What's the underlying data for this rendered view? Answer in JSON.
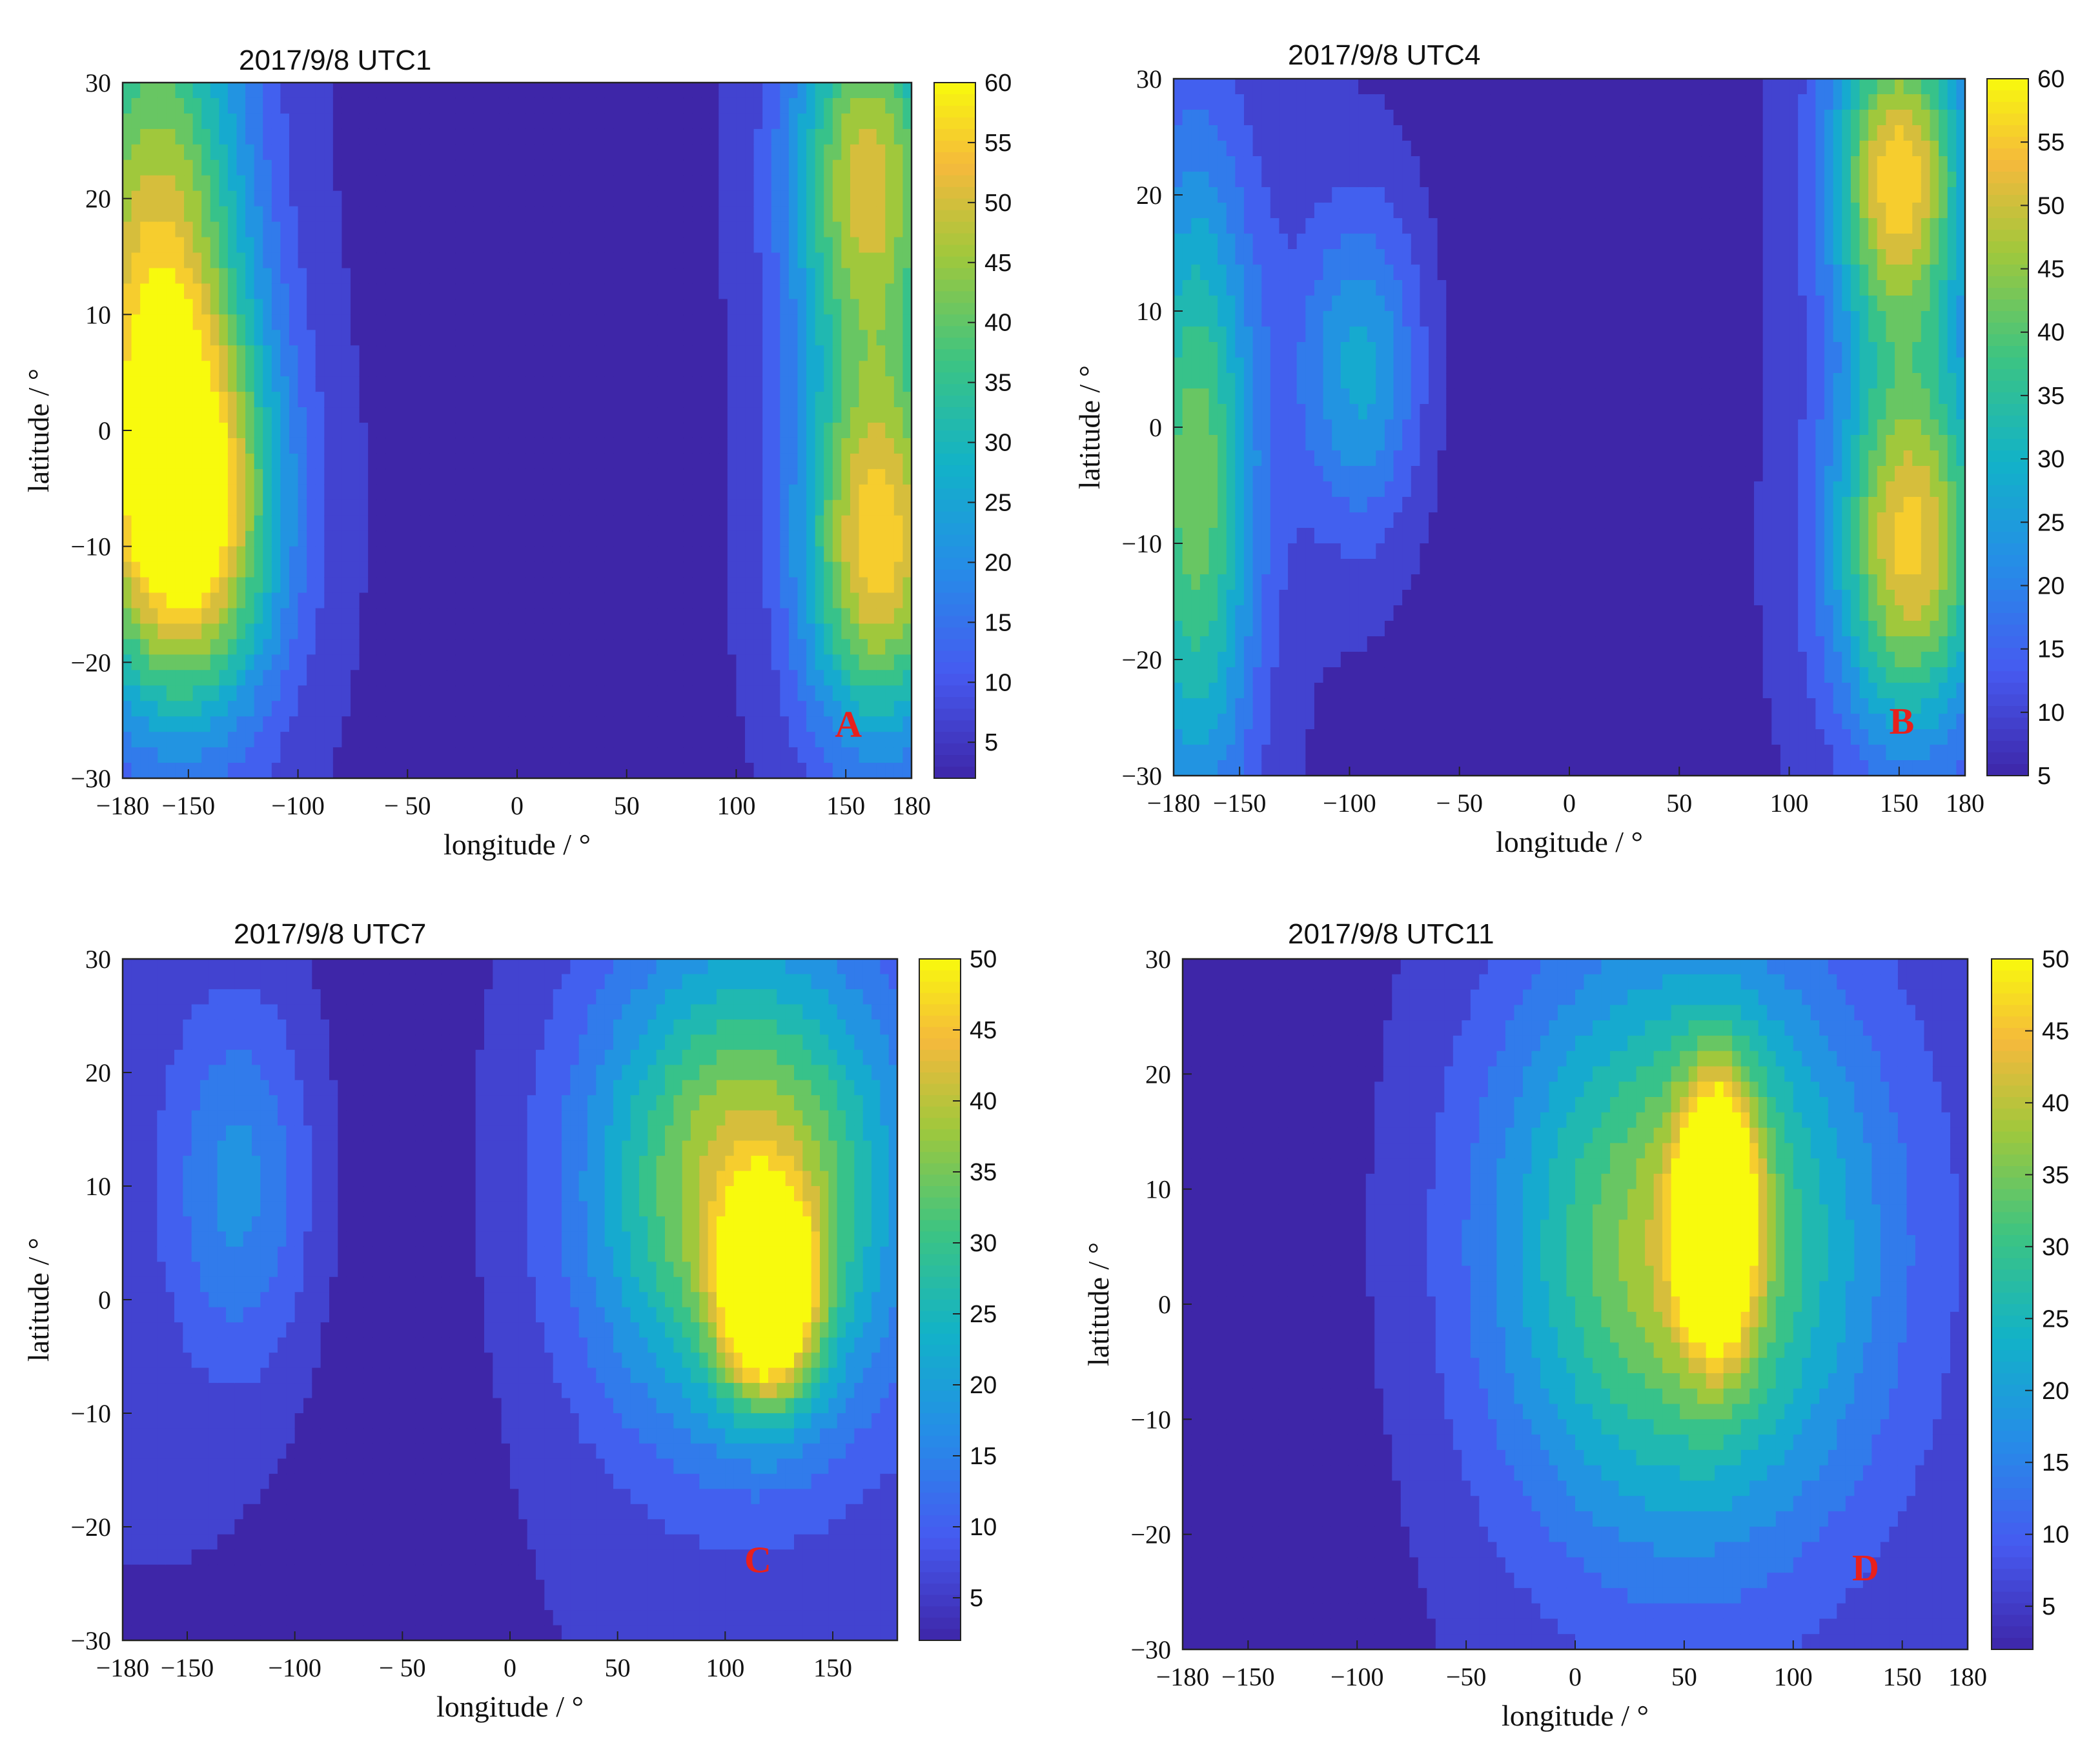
{
  "chart_data": [
    {
      "type": "contour",
      "title": "2017/9/8 UTC1",
      "xlabel": "longitude / °",
      "ylabel": "latitude / °",
      "xlim": [
        -180,
        180
      ],
      "ylim": [
        -30,
        30
      ],
      "x_ticks": [
        "−180",
        "−150",
        "−100",
        "− 50",
        "0",
        "50",
        "100",
        "150",
        "180"
      ],
      "y_ticks": [
        "30",
        "20",
        "10",
        "0",
        "−10",
        "−20",
        "−30"
      ],
      "colorbar": {
        "min": 2,
        "max": 60,
        "ticks": [
          "60",
          "55",
          "50",
          "45",
          "40",
          "35",
          "30",
          "25",
          "20",
          "15",
          "10",
          "5"
        ]
      },
      "annotation": "A",
      "features": [
        {
          "lon": 0,
          "lat": 0,
          "value": 5,
          "sigma_lon": 60,
          "sigma_lat": 40
        },
        {
          "lon": -165,
          "lat": 15,
          "value": 52,
          "sigma_lon": 30,
          "sigma_lat": 20
        },
        {
          "lon": -150,
          "lat": -8,
          "value": 55,
          "sigma_lon": 30,
          "sigma_lat": 12
        },
        {
          "lon": 160,
          "lat": 22,
          "value": 52,
          "sigma_lon": 25,
          "sigma_lat": 12
        },
        {
          "lon": 165,
          "lat": -10,
          "value": 58,
          "sigma_lon": 25,
          "sigma_lat": 12
        }
      ]
    },
    {
      "type": "contour",
      "title": "2017/9/8 UTC4",
      "xlabel": "longitude / °",
      "ylabel": "latitude / °",
      "xlim": [
        -180,
        180
      ],
      "ylim": [
        -30,
        30
      ],
      "x_ticks": [
        "−180",
        "−150",
        "−100",
        "− 50",
        "0",
        "50",
        "100",
        "150",
        "180"
      ],
      "y_ticks": [
        "30",
        "20",
        "10",
        "0",
        "−10",
        "−20",
        "−30"
      ],
      "colorbar": {
        "min": 5,
        "max": 60,
        "ticks": [
          "60",
          "55",
          "50",
          "45",
          "40",
          "35",
          "30",
          "25",
          "20",
          "15",
          "10",
          "5"
        ]
      },
      "annotation": "B",
      "features": [
        {
          "lon": -10,
          "lat": 0,
          "value": 5,
          "sigma_lon": 45,
          "sigma_lat": 40
        },
        {
          "lon": -170,
          "lat": -5,
          "value": 45,
          "sigma_lon": 20,
          "sigma_lat": 20
        },
        {
          "lon": -95,
          "lat": 5,
          "value": 30,
          "sigma_lon": 20,
          "sigma_lat": 10
        },
        {
          "lon": 150,
          "lat": 22,
          "value": 58,
          "sigma_lon": 22,
          "sigma_lat": 10
        },
        {
          "lon": 155,
          "lat": -10,
          "value": 57,
          "sigma_lon": 25,
          "sigma_lat": 12
        }
      ]
    },
    {
      "type": "contour",
      "title": "2017/9/8 UTC7",
      "xlabel": "longitude / °",
      "ylabel": "latitude / °",
      "xlim": [
        -180,
        180
      ],
      "ylim": [
        -30,
        30
      ],
      "x_ticks": [
        "−180",
        "−150",
        "−100",
        "− 50",
        "0",
        "50",
        "100",
        "150"
      ],
      "y_ticks": [
        "30",
        "20",
        "10",
        "0",
        "−10",
        "−20",
        "−30"
      ],
      "colorbar": {
        "min": 2,
        "max": 50,
        "ticks": [
          "50",
          "45",
          "40",
          "35",
          "30",
          "25",
          "20",
          "15",
          "10",
          "5"
        ]
      },
      "annotation": "C",
      "features": [
        {
          "lon": -60,
          "lat": 0,
          "value": 3,
          "sigma_lon": 40,
          "sigma_lat": 40
        },
        {
          "lon": -125,
          "lat": 10,
          "value": 20,
          "sigma_lon": 25,
          "sigma_lat": 12
        },
        {
          "lon": 110,
          "lat": 10,
          "value": 45,
          "sigma_lon": 50,
          "sigma_lat": 15
        },
        {
          "lon": 120,
          "lat": 0,
          "value": 50,
          "sigma_lon": 15,
          "sigma_lat": 6
        }
      ]
    },
    {
      "type": "contour",
      "title": "2017/9/8 UTC11",
      "xlabel": "longitude / °",
      "ylabel": "latitude / °",
      "xlim": [
        -180,
        180
      ],
      "ylim": [
        -30,
        30
      ],
      "x_ticks": [
        "−180",
        "−150",
        "−100",
        "−50",
        "0",
        "50",
        "100",
        "150",
        "180"
      ],
      "y_ticks": [
        "30",
        "20",
        "10",
        "0",
        "−10",
        "−20",
        "−30"
      ],
      "colorbar": {
        "min": 2,
        "max": 50,
        "ticks": [
          "50",
          "45",
          "40",
          "35",
          "30",
          "25",
          "20",
          "15",
          "10",
          "5"
        ]
      },
      "annotation": "D",
      "features": [
        {
          "lon": -100,
          "lat": 0,
          "value": 4,
          "sigma_lon": 40,
          "sigma_lat": 40
        },
        {
          "lon": 50,
          "lat": 5,
          "value": 42,
          "sigma_lon": 60,
          "sigma_lat": 18
        },
        {
          "lon": 65,
          "lat": 8,
          "value": 50,
          "sigma_lon": 12,
          "sigma_lat": 8
        }
      ]
    }
  ]
}
